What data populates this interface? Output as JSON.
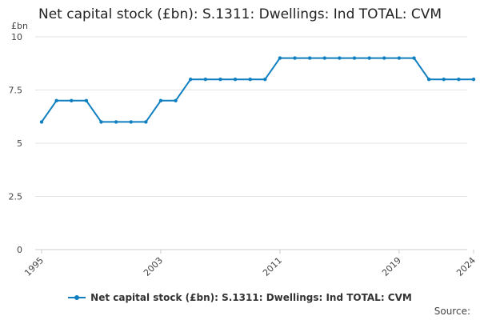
{
  "colors": {
    "series": "#0f7fbf",
    "grid": "#e3e3e3",
    "axis": "#cccccc",
    "text": "#444444"
  },
  "source_label": "Source:",
  "chart_data": {
    "type": "line",
    "title": "Net capital stock (£bn): S.1311: Dwellings: Ind TOTAL: CVM",
    "ylabel": "£bn",
    "xlabel": "",
    "ylim": [
      0,
      10
    ],
    "yticks": [
      0,
      2.5,
      5,
      7.5,
      10
    ],
    "yticklabels": [
      "0",
      "2.5",
      "5",
      "7.5",
      "10"
    ],
    "xlim": [
      1995,
      2024
    ],
    "xticks": [
      1995,
      2003,
      2011,
      2019,
      2024
    ],
    "xticklabels": [
      "1995",
      "2003",
      "2011",
      "2019",
      "2024"
    ],
    "grid": true,
    "legend_position": "bottom",
    "x": [
      1995,
      1996,
      1997,
      1998,
      1999,
      2000,
      2001,
      2002,
      2003,
      2004,
      2005,
      2006,
      2007,
      2008,
      2009,
      2010,
      2011,
      2012,
      2013,
      2014,
      2015,
      2016,
      2017,
      2018,
      2019,
      2020,
      2021,
      2022,
      2023,
      2024
    ],
    "series": [
      {
        "name": "Net capital stock (£bn): S.1311: Dwellings: Ind TOTAL: CVM",
        "values": [
          6,
          7,
          7,
          7,
          6,
          6,
          6,
          6,
          7,
          7,
          8,
          8,
          8,
          8,
          8,
          8,
          9,
          9,
          9,
          9,
          9,
          9,
          9,
          9,
          9,
          9,
          8,
          8,
          8,
          8
        ]
      }
    ]
  }
}
